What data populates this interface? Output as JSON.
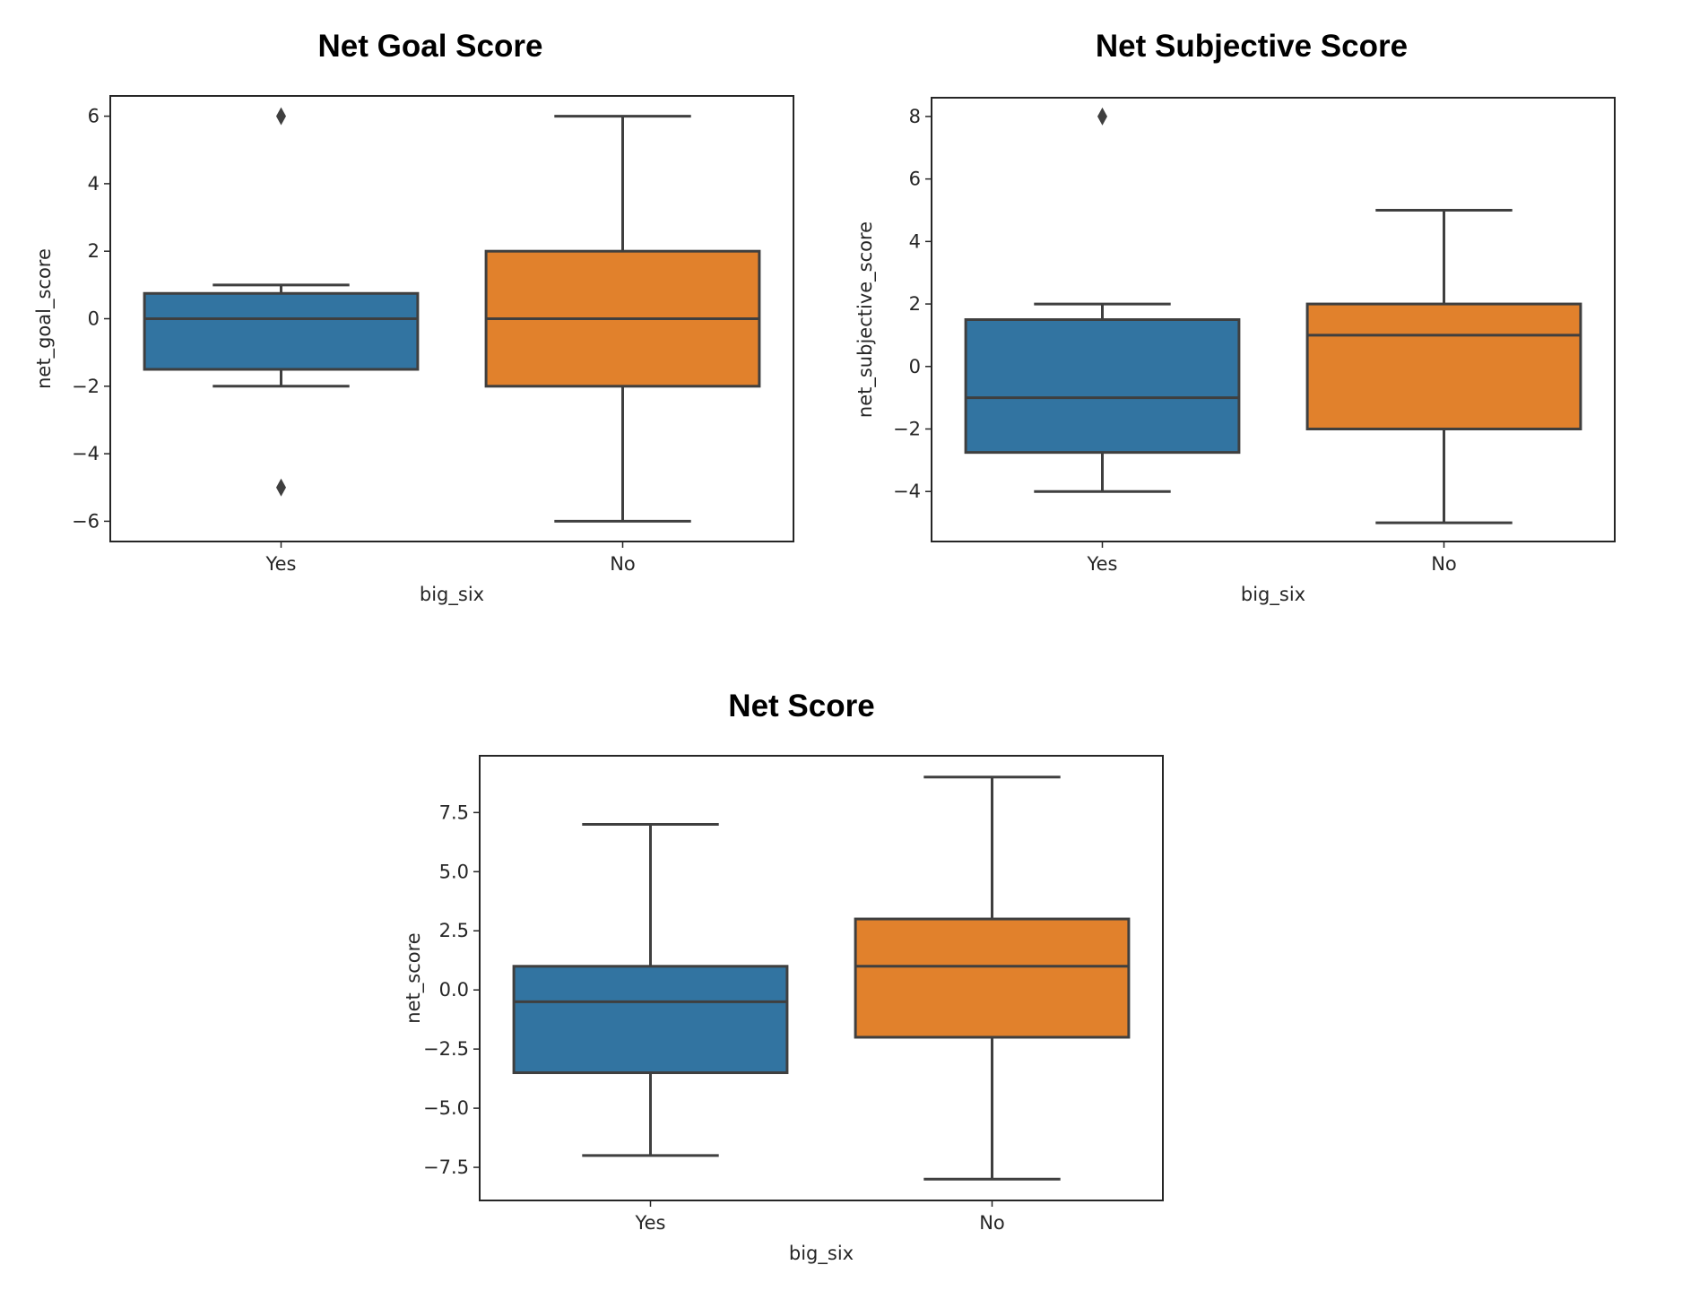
{
  "colors": {
    "yes": "#3274a1",
    "no": "#e1812c",
    "line": "#3f3f3f",
    "frame": "#262626"
  },
  "chart_data": [
    {
      "type": "box",
      "title": "Net Goal Score",
      "xlabel": "big_six",
      "ylabel": "net_goal_score",
      "categories": [
        "Yes",
        "No"
      ],
      "ylim": [
        -6.6,
        6.6
      ],
      "yticks": [
        -6,
        -4,
        -2,
        0,
        2,
        4,
        6
      ],
      "ytick_labels": [
        "−6",
        "−4",
        "−2",
        "0",
        "2",
        "4",
        "6"
      ],
      "boxes": [
        {
          "category": "Yes",
          "whisker_low": -2,
          "q1": -1.5,
          "median": 0,
          "q3": 0.75,
          "whisker_high": 1,
          "outliers": [
            6,
            -5
          ]
        },
        {
          "category": "No",
          "whisker_low": -6,
          "q1": -2,
          "median": 0,
          "q3": 2,
          "whisker_high": 6,
          "outliers": []
        }
      ]
    },
    {
      "type": "box",
      "title": "Net Subjective Score",
      "xlabel": "big_six",
      "ylabel": "net_subjective_score",
      "categories": [
        "Yes",
        "No"
      ],
      "ylim": [
        -5.6,
        8.6
      ],
      "yticks": [
        -4,
        -2,
        0,
        2,
        4,
        6,
        8
      ],
      "ytick_labels": [
        "−4",
        "−2",
        "0",
        "2",
        "4",
        "6",
        "8"
      ],
      "boxes": [
        {
          "category": "Yes",
          "whisker_low": -4,
          "q1": -2.75,
          "median": -1,
          "q3": 1.5,
          "whisker_high": 2,
          "outliers": [
            8
          ]
        },
        {
          "category": "No",
          "whisker_low": -5,
          "q1": -2,
          "median": 1,
          "q3": 2,
          "whisker_high": 5,
          "outliers": []
        }
      ]
    },
    {
      "type": "box",
      "title": "Net Score",
      "xlabel": "big_six",
      "ylabel": "net_score",
      "categories": [
        "Yes",
        "No"
      ],
      "ylim": [
        -8.9,
        9.9
      ],
      "yticks": [
        -7.5,
        -5.0,
        -2.5,
        0.0,
        2.5,
        5.0,
        7.5
      ],
      "ytick_labels": [
        "−7.5",
        "−5.0",
        "−2.5",
        "0.0",
        "2.5",
        "5.0",
        "7.5"
      ],
      "boxes": [
        {
          "category": "Yes",
          "whisker_low": -7,
          "q1": -3.5,
          "median": -0.5,
          "q3": 1,
          "whisker_high": 7,
          "outliers": []
        },
        {
          "category": "No",
          "whisker_low": -8,
          "q1": -2,
          "median": 1,
          "q3": 3,
          "whisker_high": 9,
          "outliers": []
        }
      ]
    }
  ]
}
